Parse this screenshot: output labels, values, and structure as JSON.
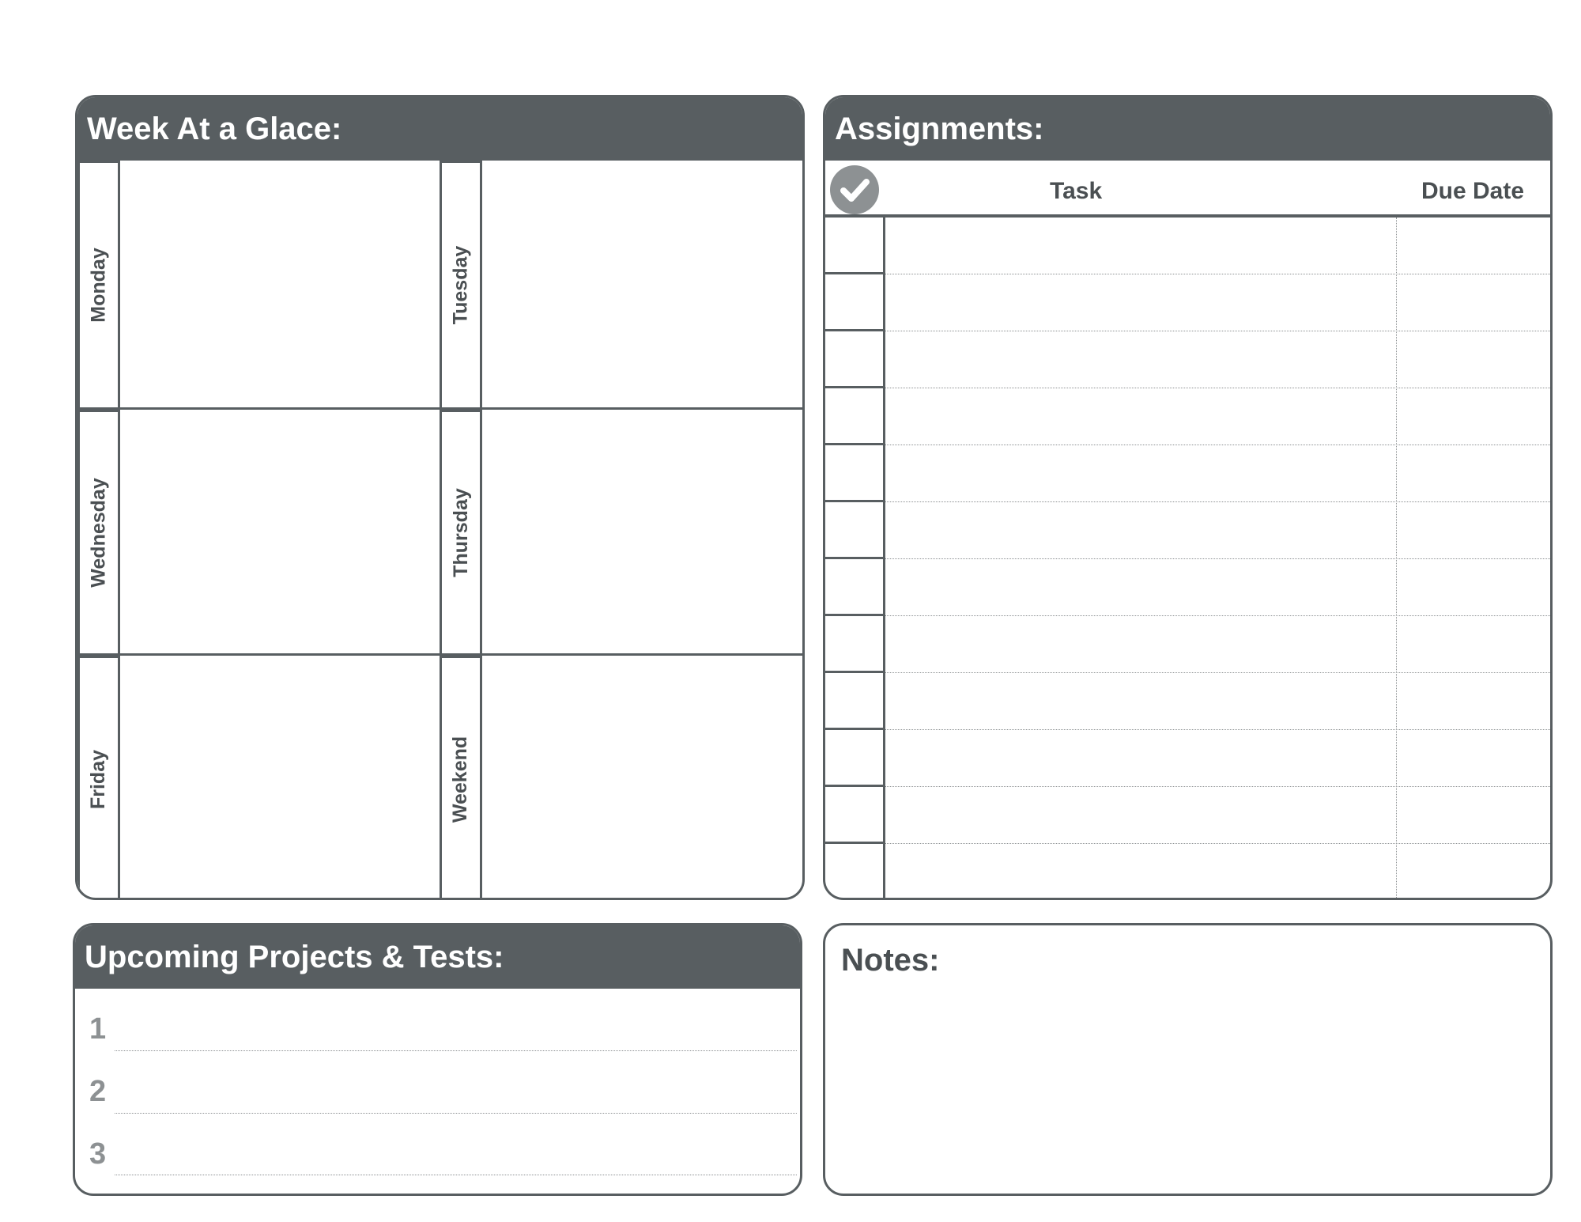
{
  "week": {
    "title": "Week At a Glace:",
    "days": [
      "Monday",
      "Tuesday",
      "Wednesday",
      "Thursday",
      "Friday",
      "Weekend"
    ]
  },
  "assignments": {
    "title": "Assignments:",
    "check_icon": "check-circle-icon",
    "task_label": "Task",
    "due_label": "Due Date"
  },
  "projects": {
    "title": "Upcoming Projects & Tests:",
    "numbers": [
      "1",
      "2",
      "3"
    ]
  },
  "notes": {
    "title": "Notes:"
  },
  "colors": {
    "header": "#585e61",
    "accent_gray": "#8d9193"
  }
}
